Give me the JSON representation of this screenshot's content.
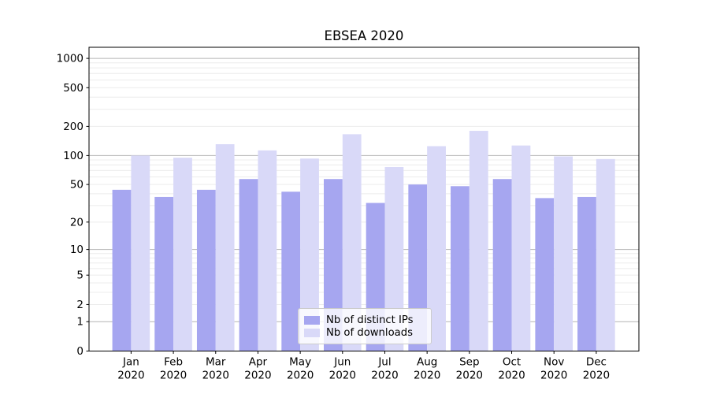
{
  "figure": {
    "title": "EBSEA 2020"
  },
  "chart_data": {
    "type": "bar",
    "title": "EBSEA 2020",
    "categories": [
      "Jan",
      "Feb",
      "Mar",
      "Apr",
      "May",
      "Jun",
      "Jul",
      "Aug",
      "Sep",
      "Oct",
      "Nov",
      "Dec"
    ],
    "category_year": "2020",
    "series": [
      {
        "name": "Nb of distinct IPs",
        "color": "#a6a6f0",
        "values": [
          44,
          37,
          44,
          57,
          42,
          57,
          32,
          50,
          48,
          57,
          36,
          37
        ]
      },
      {
        "name": "Nb of downloads",
        "color": "#d9d9f8",
        "values": [
          100,
          95,
          131,
          113,
          93,
          166,
          76,
          125,
          180,
          127,
          98,
          92
        ]
      }
    ],
    "xlabel": "",
    "ylabel": "",
    "yscale": "log1p",
    "ylim": [
      0,
      1300
    ],
    "yticks": [
      0,
      1,
      2,
      5,
      10,
      20,
      50,
      100,
      200,
      500,
      1000
    ],
    "grid": {
      "show": true,
      "major_values": [
        1,
        10,
        100,
        1000
      ],
      "major_color": "#b4b4b4",
      "minor_color": "#ececec"
    },
    "legend": {
      "position": "lower center",
      "entries": [
        "Nb of distinct IPs",
        "Nb of downloads"
      ]
    },
    "colors": {
      "axis": "#000000",
      "text": "#000000"
    }
  }
}
